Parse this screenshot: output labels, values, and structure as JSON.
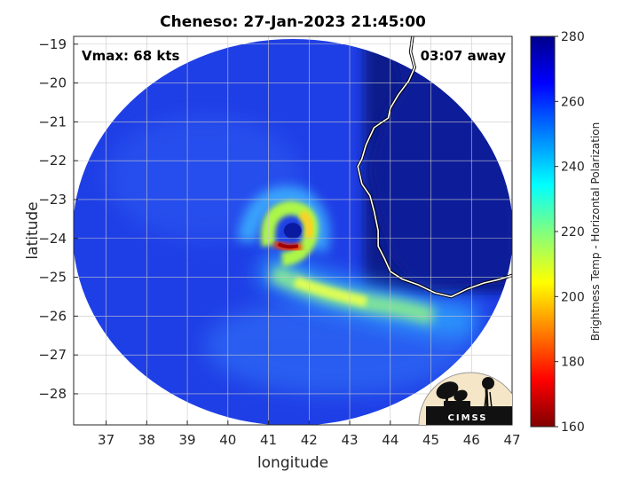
{
  "chart_data": {
    "type": "heatmap",
    "title": "Cheneso: 27-Jan-2023 21:45:00",
    "xlabel": "longitude",
    "ylabel": "latitude",
    "xlim": [
      36.2,
      47.0
    ],
    "ylim": [
      -28.8,
      -18.8
    ],
    "xticks": [
      37,
      38,
      39,
      40,
      41,
      42,
      43,
      44,
      45,
      46,
      47
    ],
    "yticks": [
      -19,
      -20,
      -21,
      -22,
      -23,
      -24,
      -25,
      -26,
      -27,
      -28
    ],
    "grid": true,
    "annotations": {
      "vmax": "Vmax: 68 kts",
      "away": "03:07 away"
    },
    "storm_center": {
      "lon": 41.55,
      "lat": -23.85
    },
    "coastline": [
      [
        44.55,
        -18.8
      ],
      [
        44.5,
        -19.2
      ],
      [
        44.6,
        -19.6
      ],
      [
        44.45,
        -19.95
      ],
      [
        44.2,
        -20.3
      ],
      [
        44.0,
        -20.65
      ],
      [
        43.95,
        -20.9
      ],
      [
        43.6,
        -21.15
      ],
      [
        43.4,
        -21.6
      ],
      [
        43.3,
        -21.95
      ],
      [
        43.2,
        -22.15
      ],
      [
        43.3,
        -22.6
      ],
      [
        43.5,
        -22.9
      ],
      [
        43.6,
        -23.3
      ],
      [
        43.7,
        -23.8
      ],
      [
        43.7,
        -24.2
      ],
      [
        43.85,
        -24.5
      ],
      [
        44.0,
        -24.85
      ],
      [
        44.3,
        -25.05
      ],
      [
        44.7,
        -25.2
      ],
      [
        45.1,
        -25.4
      ],
      [
        45.5,
        -25.5
      ],
      [
        45.9,
        -25.3
      ],
      [
        46.3,
        -25.15
      ],
      [
        46.7,
        -25.05
      ],
      [
        47.0,
        -24.95
      ]
    ],
    "colorbar": {
      "label": "Brightness Temp - Horizontal Polarization",
      "min": 160,
      "max": 280,
      "ticks": [
        280,
        260,
        240,
        220,
        200,
        180,
        160
      ]
    }
  },
  "logo": {
    "text": "CIMSS"
  }
}
